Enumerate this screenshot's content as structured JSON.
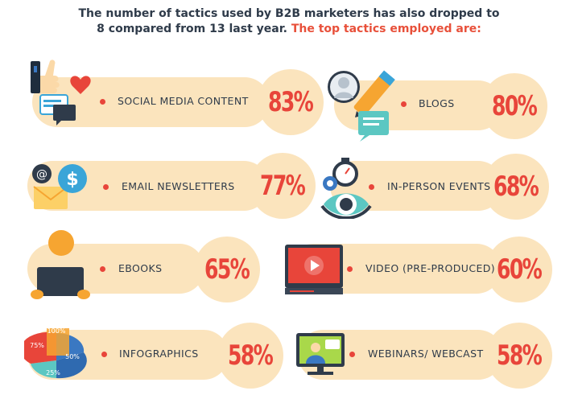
{
  "header": {
    "line1": "The number of tactics used by B2B marketers has also dropped to",
    "line2_plain": "8 compared from 13 last year.",
    "line2_accent": "The top tactics employed are:"
  },
  "tactics": [
    {
      "label": "SOCIAL MEDIA CONTENT",
      "percent": "83%",
      "icon": "social-media-icon"
    },
    {
      "label": "BLOGS",
      "percent": "80%",
      "icon": "blog-pencil-icon"
    },
    {
      "label": "EMAIL NEWSLETTERS",
      "percent": "77%",
      "icon": "email-dollar-icon"
    },
    {
      "label": "IN-PERSON EVENTS",
      "percent": "68%",
      "icon": "stopwatch-eye-icon"
    },
    {
      "label": "EBOOKS",
      "percent": "65%",
      "icon": "ebook-reader-icon"
    },
    {
      "label": "VIDEO (PRE-PRODUCED)",
      "percent": "60%",
      "icon": "video-player-icon"
    },
    {
      "label": "INFOGRAPHICS",
      "percent": "58%",
      "icon": "pie-chart-icon"
    },
    {
      "label": "WEBINARS/ WEBCAST",
      "percent": "58%",
      "icon": "webinar-monitor-icon"
    }
  ],
  "pie_icon_labels": [
    "100%",
    "75%",
    "50%",
    "25%"
  ],
  "colors": {
    "pill": "#fbe4bd",
    "percent": "#e8453a",
    "text": "#2f3b4a"
  }
}
